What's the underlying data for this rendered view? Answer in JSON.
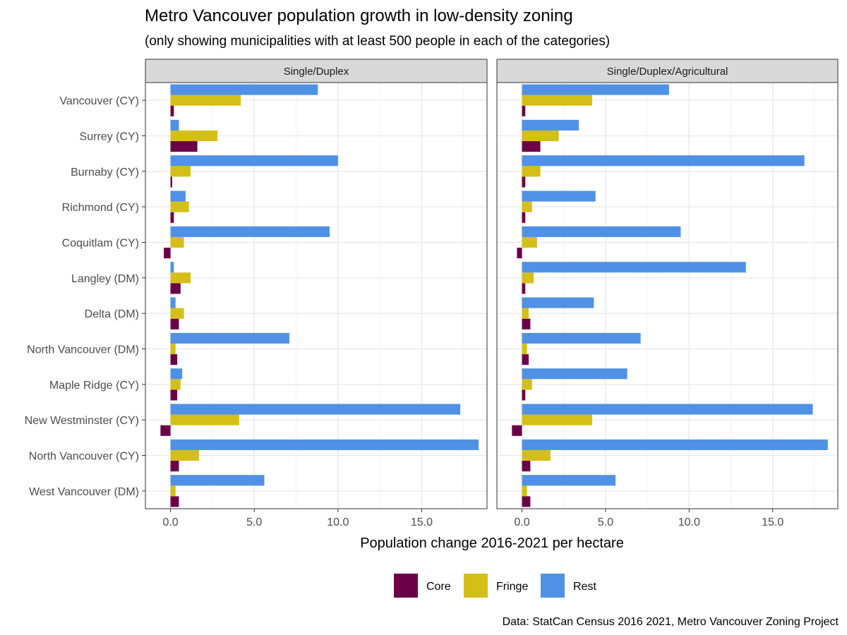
{
  "chart_data": {
    "type": "bar",
    "orientation": "horizontal",
    "title": "Metro Vancouver population growth in low-density zoning",
    "subtitle": "(only showing municipalities with at least 500 people in each of the categories)",
    "xlabel": "Population change 2016-2021 per hectare",
    "ylabel": "",
    "caption": "Data: StatCan Census 2016 2021, Metro Vancouver Zoning Project",
    "xlim": [
      -1.5,
      18.9
    ],
    "xticks": [
      0,
      5,
      10,
      15
    ],
    "xtick_labels": [
      "0.0",
      "5.0",
      "10.0",
      "15.0"
    ],
    "grid": true,
    "legend_position": "bottom",
    "colors": {
      "Core": "#6b0046",
      "Fringe": "#d4bf19",
      "Rest": "#5091e5"
    },
    "categories": [
      "Vancouver (CY)",
      "Surrey (CY)",
      "Burnaby (CY)",
      "Richmond (CY)",
      "Coquitlam (CY)",
      "Langley (DM)",
      "Delta (DM)",
      "North Vancouver (DM)",
      "Maple Ridge (CY)",
      "New Westminster (CY)",
      "North Vancouver (CY)",
      "West Vancouver (DM)"
    ],
    "panels": [
      {
        "name": "Single/Duplex",
        "series": [
          {
            "name": "Core",
            "values": [
              0.2,
              1.6,
              0.1,
              0.2,
              -0.4,
              0.6,
              0.5,
              0.4,
              0.4,
              -0.6,
              0.5,
              0.5
            ]
          },
          {
            "name": "Fringe",
            "values": [
              4.2,
              2.8,
              1.2,
              1.1,
              0.8,
              1.2,
              0.8,
              0.3,
              0.6,
              4.1,
              1.7,
              0.3
            ]
          },
          {
            "name": "Rest",
            "values": [
              8.8,
              0.5,
              10.0,
              0.9,
              9.5,
              0.2,
              0.3,
              7.1,
              0.7,
              17.3,
              18.4,
              5.6
            ]
          }
        ]
      },
      {
        "name": "Single/Duplex/Agricultural",
        "series": [
          {
            "name": "Core",
            "values": [
              0.2,
              1.1,
              0.2,
              0.2,
              -0.3,
              0.2,
              0.5,
              0.4,
              0.2,
              -0.6,
              0.5,
              0.5
            ]
          },
          {
            "name": "Fringe",
            "values": [
              4.2,
              2.2,
              1.1,
              0.6,
              0.9,
              0.7,
              0.4,
              0.3,
              0.6,
              4.2,
              1.7,
              0.3
            ]
          },
          {
            "name": "Rest",
            "values": [
              8.8,
              3.4,
              16.9,
              4.4,
              9.5,
              13.4,
              4.3,
              7.1,
              6.3,
              17.4,
              18.3,
              5.6
            ]
          }
        ]
      }
    ]
  }
}
